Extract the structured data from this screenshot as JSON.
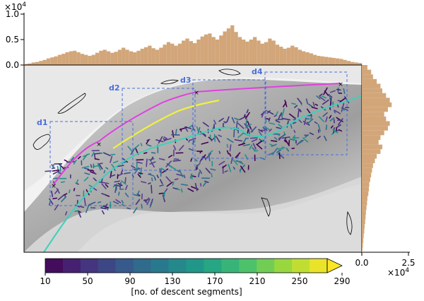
{
  "chart_data": {
    "type": "heatmap",
    "colorbar": {
      "ticks": [
        "10",
        "50",
        "90",
        "130",
        "170",
        "210",
        "250",
        "290"
      ],
      "label": "[no. of descent segments]",
      "colormap": [
        "#440154",
        "#46317e",
        "#365b8c",
        "#277f8e",
        "#1fa187",
        "#4ac16d",
        "#a0da39",
        "#fde725"
      ]
    },
    "top_histogram": {
      "scale_label": "×10^4",
      "scale_base": "×10",
      "scale_exp": "4",
      "yticks": [
        "0.0",
        "0.5",
        "1.0"
      ],
      "ylim": [
        0,
        1.0
      ],
      "color": "#d2a679",
      "values": [
        0.02,
        0.03,
        0.05,
        0.06,
        0.08,
        0.1,
        0.13,
        0.15,
        0.17,
        0.2,
        0.22,
        0.25,
        0.27,
        0.28,
        0.25,
        0.22,
        0.2,
        0.18,
        0.2,
        0.24,
        0.28,
        0.3,
        0.27,
        0.24,
        0.26,
        0.3,
        0.34,
        0.3,
        0.27,
        0.25,
        0.28,
        0.32,
        0.35,
        0.38,
        0.33,
        0.3,
        0.34,
        0.4,
        0.45,
        0.42,
        0.38,
        0.42,
        0.48,
        0.52,
        0.47,
        0.43,
        0.5,
        0.56,
        0.6,
        0.62,
        0.55,
        0.5,
        0.58,
        0.66,
        0.72,
        0.78,
        0.65,
        0.55,
        0.5,
        0.46,
        0.5,
        0.55,
        0.48,
        0.42,
        0.45,
        0.52,
        0.48,
        0.4,
        0.36,
        0.32,
        0.34,
        0.38,
        0.35,
        0.3,
        0.27,
        0.25,
        0.23,
        0.2,
        0.18,
        0.17,
        0.16,
        0.15,
        0.14,
        0.13,
        0.12,
        0.1,
        0.08,
        0.06,
        0.05,
        0.04
      ]
    },
    "right_histogram": {
      "scale_label": "×10^4",
      "scale_base": "×10",
      "scale_exp": "4",
      "xticks": [
        "0.0",
        "2.5"
      ],
      "xlim": [
        0,
        2.5
      ],
      "color": "#d2a679",
      "values": [
        0.3,
        0.5,
        0.6,
        0.8,
        1.0,
        1.1,
        1.3,
        1.5,
        1.6,
        1.4,
        1.2,
        1.3,
        1.5,
        1.4,
        1.2,
        1.0,
        0.9,
        1.1,
        1.0,
        0.8,
        0.7,
        0.6,
        0.55,
        0.5,
        0.45,
        0.4,
        0.38,
        0.35,
        0.3,
        0.28,
        0.25,
        0.22,
        0.2,
        0.18,
        0.15,
        0.13,
        0.1,
        0.08,
        0.06,
        0.04
      ]
    },
    "regions": [
      {
        "name": "d1"
      },
      {
        "name": "d2"
      },
      {
        "name": "d3"
      },
      {
        "name": "d4"
      }
    ],
    "colors": {
      "magenta_line": "#e040e0",
      "teal_line": "#3fd0b8",
      "yellow_line": "#f0f040",
      "region_box": "#4a6fd8",
      "segments": "#4b3d8f"
    }
  }
}
